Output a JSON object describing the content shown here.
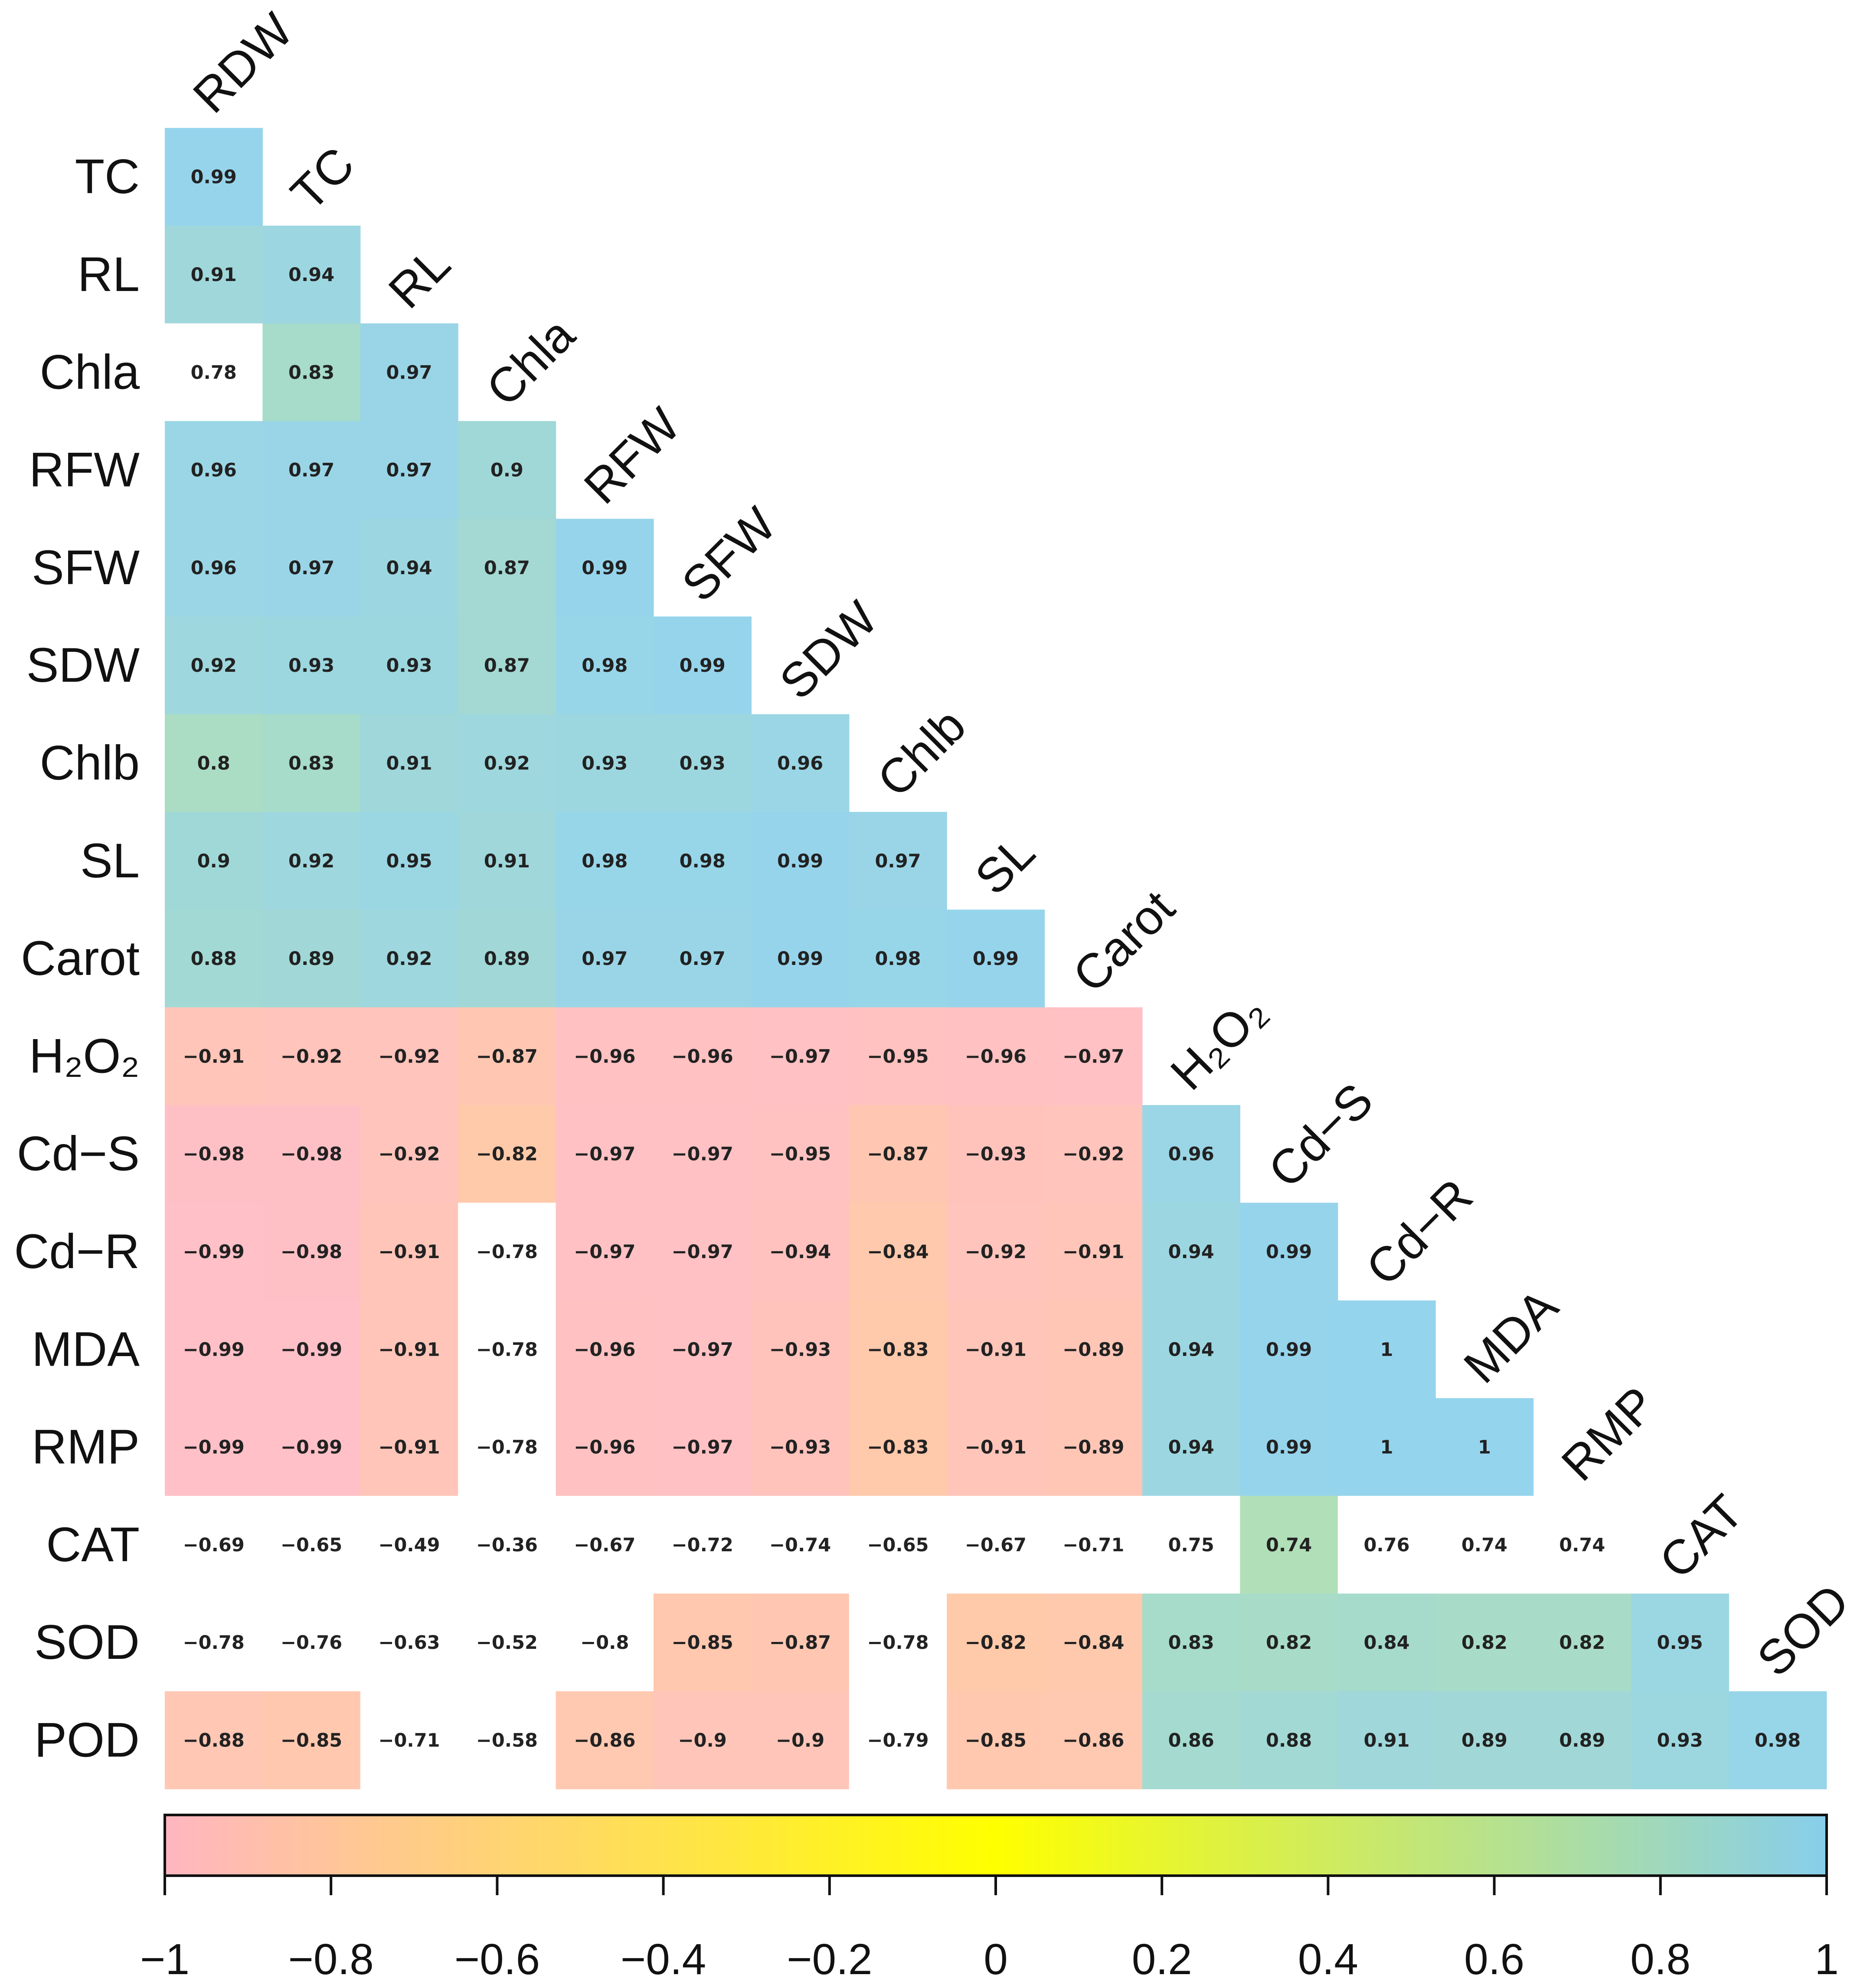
{
  "chart_data": {
    "type": "heatmap",
    "subtype": "lower-triangular correlation matrix",
    "row_labels": [
      "TC",
      "RL",
      "Chla",
      "RFW",
      "SFW",
      "SDW",
      "Chlb",
      "SL",
      "Carot",
      "H₂O₂",
      "Cd−S",
      "Cd−R",
      "MDA",
      "RMP",
      "CAT",
      "SOD",
      "POD"
    ],
    "column_labels": [
      "RDW",
      "TC",
      "RL",
      "Chla",
      "RFW",
      "SFW",
      "SDW",
      "Chlb",
      "SL",
      "Carot",
      "H₂O₂",
      "Cd−S",
      "Cd−R",
      "MDA",
      "RMP",
      "CAT",
      "SOD"
    ],
    "values": [
      [
        0.99
      ],
      [
        0.91,
        0.94
      ],
      [
        0.78,
        0.83,
        0.97
      ],
      [
        0.96,
        0.97,
        0.97,
        0.9
      ],
      [
        0.96,
        0.97,
        0.94,
        0.87,
        0.99
      ],
      [
        0.92,
        0.93,
        0.93,
        0.87,
        0.98,
        0.99
      ],
      [
        0.8,
        0.83,
        0.91,
        0.92,
        0.93,
        0.93,
        0.96
      ],
      [
        0.9,
        0.92,
        0.95,
        0.91,
        0.98,
        0.98,
        0.99,
        0.97
      ],
      [
        0.88,
        0.89,
        0.92,
        0.89,
        0.97,
        0.97,
        0.99,
        0.98,
        0.99
      ],
      [
        -0.91,
        -0.92,
        -0.92,
        -0.87,
        -0.96,
        -0.96,
        -0.97,
        -0.95,
        -0.96,
        -0.97
      ],
      [
        -0.98,
        -0.98,
        -0.92,
        -0.82,
        -0.97,
        -0.97,
        -0.95,
        -0.87,
        -0.93,
        -0.92,
        0.96
      ],
      [
        -0.99,
        -0.98,
        -0.91,
        -0.78,
        -0.97,
        -0.97,
        -0.94,
        -0.84,
        -0.92,
        -0.91,
        0.94,
        0.99
      ],
      [
        -0.99,
        -0.99,
        -0.91,
        -0.78,
        -0.96,
        -0.97,
        -0.93,
        -0.83,
        -0.91,
        -0.89,
        0.94,
        0.99,
        1
      ],
      [
        -0.99,
        -0.99,
        -0.91,
        -0.78,
        -0.96,
        -0.97,
        -0.93,
        -0.83,
        -0.91,
        -0.89,
        0.94,
        0.99,
        1,
        1
      ],
      [
        -0.69,
        -0.65,
        -0.49,
        -0.36,
        -0.67,
        -0.72,
        -0.74,
        -0.65,
        -0.67,
        -0.71,
        0.75,
        0.74,
        0.76,
        0.74,
        0.74
      ],
      [
        -0.78,
        -0.76,
        -0.63,
        -0.52,
        -0.8,
        -0.85,
        -0.87,
        -0.78,
        -0.82,
        -0.84,
        0.83,
        0.82,
        0.84,
        0.82,
        0.82,
        0.95
      ],
      [
        -0.88,
        -0.85,
        -0.71,
        -0.58,
        -0.86,
        -0.9,
        -0.9,
        -0.79,
        -0.85,
        -0.86,
        0.86,
        0.88,
        0.91,
        0.89,
        0.89,
        0.93,
        0.98
      ]
    ],
    "display_values": [
      [
        "0.99"
      ],
      [
        "0.91",
        "0.94"
      ],
      [
        "0.78",
        "0.83",
        "0.97"
      ],
      [
        "0.96",
        "0.97",
        "0.97",
        "0.9"
      ],
      [
        "0.96",
        "0.97",
        "0.94",
        "0.87",
        "0.99"
      ],
      [
        "0.92",
        "0.93",
        "0.93",
        "0.87",
        "0.98",
        "0.99"
      ],
      [
        "0.8",
        "0.83",
        "0.91",
        "0.92",
        "0.93",
        "0.93",
        "0.96"
      ],
      [
        "0.9",
        "0.92",
        "0.95",
        "0.91",
        "0.98",
        "0.98",
        "0.99",
        "0.97"
      ],
      [
        "0.88",
        "0.89",
        "0.92",
        "0.89",
        "0.97",
        "0.97",
        "0.99",
        "0.98",
        "0.99"
      ],
      [
        "−0.91",
        "−0.92",
        "−0.92",
        "−0.87",
        "−0.96",
        "−0.96",
        "−0.97",
        "−0.95",
        "−0.96",
        "−0.97"
      ],
      [
        "−0.98",
        "−0.98",
        "−0.92",
        "−0.82",
        "−0.97",
        "−0.97",
        "−0.95",
        "−0.87",
        "−0.93",
        "−0.92",
        "0.96"
      ],
      [
        "−0.99",
        "−0.98",
        "−0.91",
        "−0.78",
        "−0.97",
        "−0.97",
        "−0.94",
        "−0.84",
        "−0.92",
        "−0.91",
        "0.94",
        "0.99"
      ],
      [
        "−0.99",
        "−0.99",
        "−0.91",
        "−0.78",
        "−0.96",
        "−0.97",
        "−0.93",
        "−0.83",
        "−0.91",
        "−0.89",
        "0.94",
        "0.99",
        "1"
      ],
      [
        "−0.99",
        "−0.99",
        "−0.91",
        "−0.78",
        "−0.96",
        "−0.97",
        "−0.93",
        "−0.83",
        "−0.91",
        "−0.89",
        "0.94",
        "0.99",
        "1",
        "1"
      ],
      [
        "−0.69",
        "−0.65",
        "−0.49",
        "−0.36",
        "−0.67",
        "−0.72",
        "−0.74",
        "−0.65",
        "−0.67",
        "−0.71",
        "0.75",
        "0.74",
        "0.76",
        "0.74",
        "0.74"
      ],
      [
        "−0.78",
        "−0.76",
        "−0.63",
        "−0.52",
        "−0.8",
        "−0.85",
        "−0.87",
        "−0.78",
        "−0.82",
        "−0.84",
        "0.83",
        "0.82",
        "0.84",
        "0.82",
        "0.82",
        "0.95"
      ],
      [
        "−0.88",
        "−0.85",
        "−0.71",
        "−0.58",
        "−0.86",
        "−0.9",
        "−0.9",
        "−0.79",
        "−0.85",
        "−0.86",
        "0.86",
        "0.88",
        "0.91",
        "0.89",
        "0.89",
        "0.93",
        "0.98"
      ]
    ],
    "blank_cells": [
      [
        2,
        0
      ],
      [
        11,
        3
      ],
      [
        12,
        3
      ],
      [
        13,
        3
      ],
      [
        14,
        0
      ],
      [
        14,
        1
      ],
      [
        14,
        2
      ],
      [
        14,
        3
      ],
      [
        14,
        4
      ],
      [
        14,
        5
      ],
      [
        14,
        6
      ],
      [
        14,
        7
      ],
      [
        14,
        8
      ],
      [
        14,
        9
      ],
      [
        14,
        10
      ],
      [
        14,
        12
      ],
      [
        14,
        13
      ],
      [
        14,
        14
      ],
      [
        15,
        0
      ],
      [
        15,
        1
      ],
      [
        15,
        2
      ],
      [
        15,
        3
      ],
      [
        15,
        4
      ],
      [
        15,
        7
      ],
      [
        16,
        2
      ],
      [
        16,
        3
      ],
      [
        16,
        7
      ]
    ],
    "colorbar": {
      "range": [
        -1,
        1
      ],
      "tick_values": [
        -1,
        -0.8,
        -0.6,
        -0.4,
        -0.2,
        0,
        0.2,
        0.4,
        0.6,
        0.8,
        1
      ],
      "tick_labels": [
        "−1",
        "−0.8",
        "−0.6",
        "−0.4",
        "−0.2",
        "0",
        "0.2",
        "0.4",
        "0.6",
        "0.8",
        "1"
      ],
      "colors": {
        "low": "#ffb6c1",
        "mid": "#ffff00",
        "high": "#87ceeb"
      },
      "placement": "bottom"
    }
  }
}
